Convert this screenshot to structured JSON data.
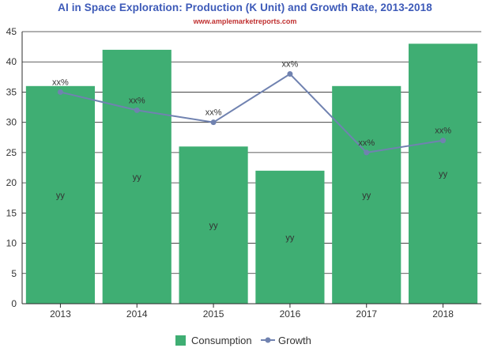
{
  "chart_data": {
    "type": "bar",
    "title": "AI in Space Exploration: Production (K Unit) and Growth Rate, 2013-2018",
    "subtitle": "www.amplemarketreports.com",
    "categories": [
      "2013",
      "2014",
      "2015",
      "2016",
      "2017",
      "2018"
    ],
    "series": [
      {
        "name": "Consumption",
        "type": "bar",
        "values": [
          36,
          42,
          26,
          22,
          36,
          43
        ],
        "labels": [
          "yy",
          "yy",
          "yy",
          "yy",
          "yy",
          "yy"
        ]
      },
      {
        "name": "Growth",
        "type": "line",
        "values": [
          35,
          32,
          30,
          38,
          25,
          27
        ],
        "labels": [
          "xx%",
          "xx%",
          "xx%",
          "xx%",
          "xx%",
          "xx%"
        ]
      }
    ],
    "yticks": [
      "0",
      "5",
      "10",
      "15",
      "20",
      "25",
      "30",
      "35",
      "40",
      "45"
    ],
    "ylim": [
      0,
      45
    ],
    "grid": true,
    "legend_position": "bottom",
    "colors": {
      "bar": "#3fae73",
      "line": "#7082b0",
      "grid": "#2c2c2c",
      "text": "#333333",
      "title": "#3d5ab8",
      "subtitle": "#c03030"
    }
  }
}
